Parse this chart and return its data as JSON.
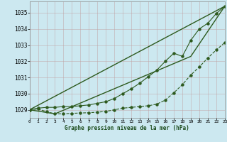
{
  "title": "Graphe pression niveau de la mer (hPa)",
  "background_color": "#cce8f0",
  "grid_color": "#b0c8d0",
  "line_color": "#2d5a1e",
  "xlim": [
    0,
    23
  ],
  "ylim": [
    1028.5,
    1035.7
  ],
  "yticks": [
    1029,
    1030,
    1031,
    1032,
    1033,
    1034,
    1035
  ],
  "xticks": [
    0,
    1,
    2,
    3,
    4,
    5,
    6,
    7,
    8,
    9,
    10,
    11,
    12,
    13,
    14,
    15,
    16,
    17,
    18,
    19,
    20,
    21,
    22,
    23
  ],
  "line_straight": {
    "x": [
      0,
      23
    ],
    "y": [
      1029.0,
      1035.4
    ],
    "linewidth": 1.0,
    "linestyle": "-"
  },
  "line_curved_upper": {
    "x": [
      0,
      1,
      2,
      3,
      4,
      5,
      6,
      7,
      8,
      9,
      10,
      11,
      12,
      13,
      14,
      15,
      16,
      17,
      18,
      19,
      20,
      21,
      22,
      23
    ],
    "y": [
      1029.0,
      1029.1,
      1029.15,
      1029.15,
      1029.2,
      1029.2,
      1029.25,
      1029.3,
      1029.4,
      1029.5,
      1029.7,
      1030.0,
      1030.3,
      1030.65,
      1031.05,
      1031.45,
      1032.0,
      1032.5,
      1032.3,
      1033.3,
      1034.0,
      1034.35,
      1034.95,
      1035.4
    ],
    "marker": "o",
    "markersize": 2.2,
    "linewidth": 0.8,
    "linestyle": "-"
  },
  "line_curved_lower": {
    "x": [
      0,
      1,
      2,
      3,
      4,
      5,
      6,
      7,
      8,
      9,
      10,
      11,
      12,
      13,
      14,
      15,
      16,
      17,
      18,
      19,
      20,
      21,
      22,
      23
    ],
    "y": [
      1029.0,
      1029.05,
      1028.88,
      1028.75,
      1028.75,
      1028.78,
      1028.8,
      1028.82,
      1028.85,
      1028.9,
      1029.0,
      1029.1,
      1029.15,
      1029.2,
      1029.25,
      1029.35,
      1029.6,
      1030.05,
      1030.55,
      1031.15,
      1031.65,
      1032.2,
      1032.7,
      1033.15
    ],
    "marker": "o",
    "markersize": 2.2,
    "linewidth": 0.8,
    "linestyle": "--"
  },
  "line_peak": {
    "x": [
      0,
      3,
      19,
      23
    ],
    "y": [
      1029.0,
      1028.75,
      1032.3,
      1035.4
    ],
    "linewidth": 1.0,
    "linestyle": "-"
  }
}
